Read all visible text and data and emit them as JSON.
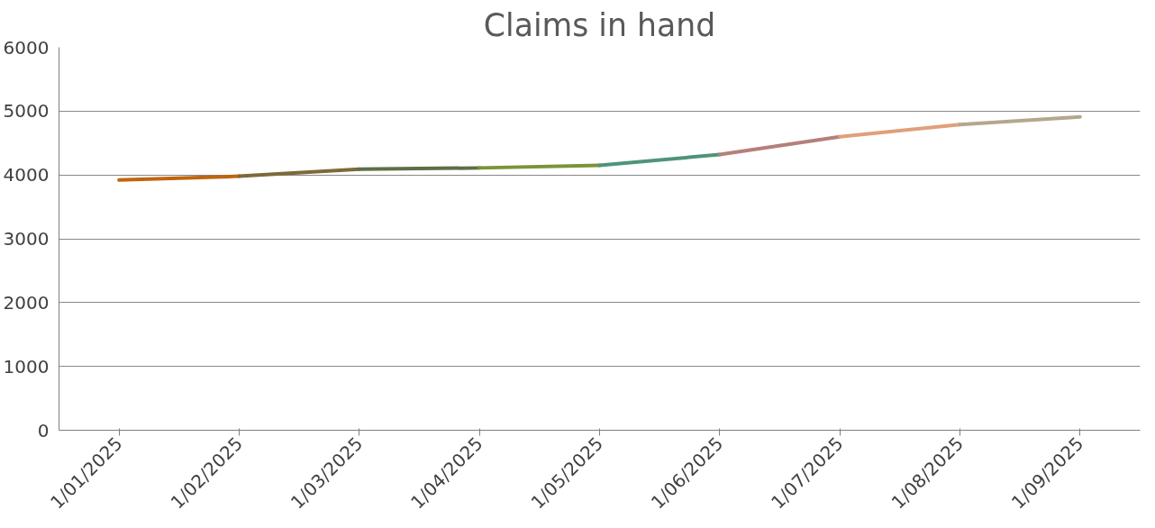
{
  "chart_data": {
    "type": "line",
    "title": "Claims in hand",
    "categories": [
      "1/01/2025",
      "1/02/2025",
      "1/03/2025",
      "1/04/2025",
      "1/05/2025",
      "1/06/2025",
      "1/07/2025",
      "1/08/2025",
      "1/09/2025"
    ],
    "series": [
      {
        "color": "#c0650f",
        "values": [
          3920,
          3980,
          null,
          null,
          null,
          null,
          null,
          null,
          null
        ]
      },
      {
        "color": "#7d6a3a",
        "values": [
          null,
          3980,
          4090,
          null,
          null,
          null,
          null,
          null,
          null
        ]
      },
      {
        "color": "#5e6e46",
        "values": [
          null,
          null,
          4090,
          4110,
          null,
          null,
          null,
          null,
          null
        ]
      },
      {
        "color": "#7a9436",
        "values": [
          null,
          null,
          null,
          4110,
          4150,
          null,
          null,
          null,
          null
        ]
      },
      {
        "color": "#4f9478",
        "values": [
          null,
          null,
          null,
          null,
          4150,
          4320,
          null,
          null,
          null
        ]
      },
      {
        "color": "#b5807a",
        "values": [
          null,
          null,
          null,
          null,
          null,
          4320,
          4600,
          null,
          null
        ]
      },
      {
        "color": "#e0a07a",
        "values": [
          null,
          null,
          null,
          null,
          null,
          null,
          4600,
          4790,
          null
        ]
      },
      {
        "color": "#b4a88c",
        "values": [
          null,
          null,
          null,
          null,
          null,
          null,
          null,
          4790,
          4910
        ]
      }
    ],
    "ylim": [
      0,
      6000
    ],
    "yticks": [
      0,
      1000,
      2000,
      3000,
      4000,
      5000,
      6000
    ],
    "grid": "y",
    "marker": "none",
    "line_style": "solid"
  }
}
